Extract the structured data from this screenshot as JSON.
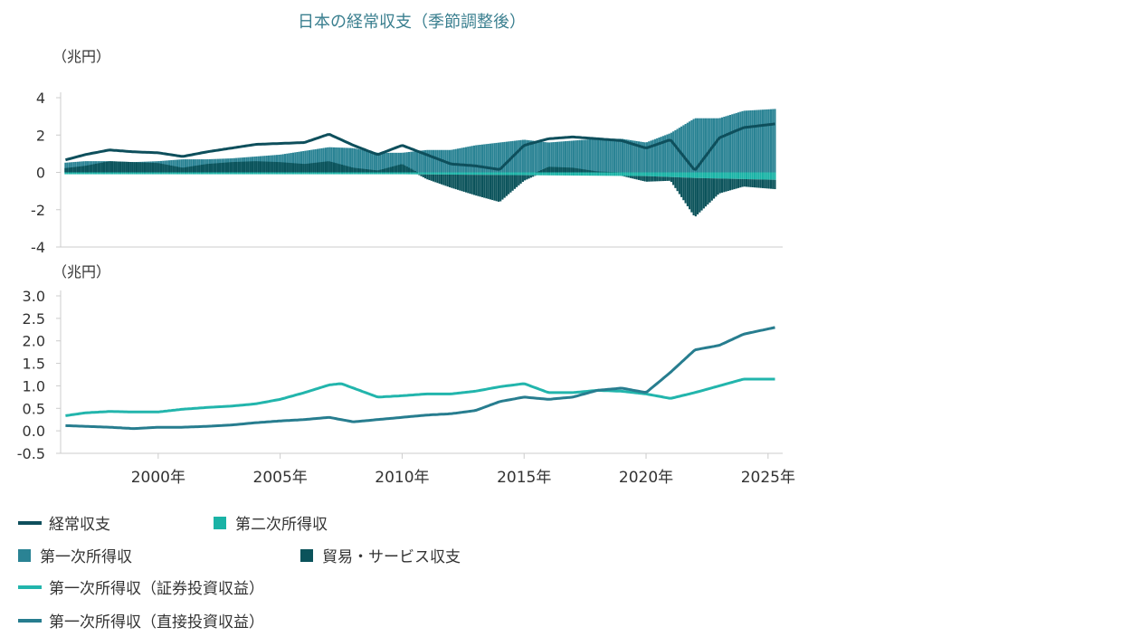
{
  "title": "日本の経常収支（季節調整後）",
  "colors": {
    "current_account": "#0e4f5c",
    "secondary_income": "#1ab3a6",
    "primary_income": "#2a8394",
    "trade_services": "#0b535b",
    "portfolio_income": "#22b5ac",
    "direct_income": "#277d8f",
    "axis": "#cccccc",
    "title": "#3a7f8f",
    "text": "#333333"
  },
  "chart_data": [
    {
      "type": "bar",
      "unit_label": "（兆円）",
      "ylim": [
        -4,
        4
      ],
      "yticks": [
        4,
        2,
        0,
        -2,
        -4
      ],
      "ytick_labels": [
        "4",
        "2",
        "0",
        "-2",
        "-4"
      ],
      "xlim": [
        1996.0,
        2025.6
      ],
      "grid": false,
      "series": [
        {
          "name": "第一次所得収",
          "type": "bar",
          "x": [
            1996,
            1997,
            1998,
            1999,
            2000,
            2001,
            2002,
            2003,
            2004,
            2005,
            2006,
            2007,
            2008,
            2009,
            2010,
            2011,
            2012,
            2013,
            2014,
            2015,
            2016,
            2017,
            2018,
            2019,
            2020,
            2021,
            2022,
            2023,
            2024,
            2025.3
          ],
          "values": [
            0.5,
            0.6,
            0.6,
            0.55,
            0.6,
            0.7,
            0.7,
            0.75,
            0.85,
            0.95,
            1.15,
            1.35,
            1.3,
            1.05,
            1.05,
            1.2,
            1.2,
            1.45,
            1.6,
            1.75,
            1.6,
            1.7,
            1.8,
            1.8,
            1.6,
            2.1,
            2.9,
            2.9,
            3.3,
            3.4
          ]
        },
        {
          "name": "第二次所得収",
          "type": "bar",
          "x": [
            1996,
            2000,
            2005,
            2010,
            2015,
            2020,
            2022,
            2025.3
          ],
          "values": [
            -0.1,
            -0.1,
            -0.1,
            -0.1,
            -0.15,
            -0.2,
            -0.3,
            -0.4
          ]
        },
        {
          "name": "貿易・サービス収支",
          "type": "bar",
          "x": [
            1996,
            1997,
            1998,
            1999,
            2000,
            2001,
            2002,
            2003,
            2004,
            2005,
            2006,
            2007,
            2008,
            2009,
            2010,
            2011,
            2012,
            2013,
            2014,
            2015,
            2016,
            2017,
            2018,
            2019,
            2020,
            2021,
            2022,
            2023,
            2024,
            2025.3
          ],
          "values": [
            0.2,
            0.35,
            0.6,
            0.55,
            0.5,
            0.25,
            0.45,
            0.55,
            0.6,
            0.55,
            0.45,
            0.6,
            0.25,
            0.1,
            0.45,
            -0.25,
            -0.7,
            -1.1,
            -1.45,
            -0.3,
            0.3,
            0.25,
            0.05,
            0.0,
            -0.3,
            -0.2,
            -2.1,
            -0.8,
            -0.4,
            -0.5
          ]
        },
        {
          "name": "経常収支",
          "type": "line",
          "x": [
            1996,
            1997,
            1998,
            1999,
            2000,
            2001,
            2002,
            2003,
            2004,
            2005,
            2006,
            2007,
            2008,
            2009,
            2010,
            2011,
            2012,
            2013,
            2014,
            2015,
            2016,
            2017,
            2018,
            2019,
            2020,
            2021,
            2022,
            2023,
            2024,
            2025.3
          ],
          "values": [
            0.6,
            0.95,
            1.2,
            1.1,
            1.05,
            0.85,
            1.1,
            1.3,
            1.5,
            1.55,
            1.6,
            2.05,
            1.45,
            0.95,
            1.45,
            0.95,
            0.45,
            0.35,
            0.15,
            1.45,
            1.8,
            1.9,
            1.8,
            1.7,
            1.3,
            1.75,
            0.1,
            1.85,
            2.4,
            2.6
          ]
        }
      ]
    },
    {
      "type": "line",
      "unit_label": "（兆円）",
      "ylim": [
        -0.5,
        3.0
      ],
      "yticks": [
        3.0,
        2.5,
        2.0,
        1.5,
        1.0,
        0.5,
        0.0,
        -0.5
      ],
      "ytick_labels": [
        "3.0",
        "2.5",
        "2.0",
        "1.5",
        "1.0",
        "0.5",
        "0.0",
        "-0.5"
      ],
      "xlim": [
        1996.0,
        2025.6
      ],
      "xticks": [
        2000,
        2005,
        2010,
        2015,
        2020,
        2025
      ],
      "xtick_labels": [
        "2000年",
        "2005年",
        "2010年",
        "2015年",
        "2020年",
        "2025年"
      ],
      "grid": false,
      "series": [
        {
          "name": "第一次所得収（証券投資収益）",
          "x": [
            1996,
            1997,
            1998,
            1999,
            2000,
            2001,
            2002,
            2003,
            2004,
            2005,
            2006,
            2007,
            2007.5,
            2008,
            2009,
            2010,
            2011,
            2012,
            2013,
            2014,
            2015,
            2016,
            2017,
            2018,
            2019,
            2020,
            2021,
            2022,
            2023,
            2024,
            2025.3
          ],
          "values": [
            0.32,
            0.4,
            0.43,
            0.42,
            0.42,
            0.48,
            0.52,
            0.55,
            0.6,
            0.7,
            0.85,
            1.02,
            1.05,
            0.95,
            0.75,
            0.78,
            0.82,
            0.82,
            0.88,
            0.98,
            1.05,
            0.85,
            0.85,
            0.9,
            0.88,
            0.82,
            0.72,
            0.85,
            1.0,
            1.15,
            1.15
          ]
        },
        {
          "name": "第一次所得収（直接投資収益）",
          "x": [
            1996,
            1997,
            1998,
            1999,
            2000,
            2001,
            2002,
            2003,
            2004,
            2005,
            2006,
            2007,
            2008,
            2009,
            2010,
            2011,
            2012,
            2013,
            2014,
            2015,
            2016,
            2017,
            2018,
            2019,
            2020,
            2021,
            2022,
            2023,
            2024,
            2025.3
          ],
          "values": [
            0.12,
            0.1,
            0.08,
            0.05,
            0.08,
            0.08,
            0.1,
            0.13,
            0.18,
            0.22,
            0.25,
            0.3,
            0.2,
            0.25,
            0.3,
            0.35,
            0.38,
            0.45,
            0.65,
            0.75,
            0.7,
            0.75,
            0.9,
            0.95,
            0.85,
            1.3,
            1.8,
            1.9,
            2.15,
            2.3
          ]
        }
      ]
    }
  ],
  "legend": [
    {
      "label": "経常収支",
      "kind": "line",
      "color": "#0e4f5c"
    },
    {
      "label": "第二次所得収",
      "kind": "square",
      "color": "#1ab3a6"
    },
    {
      "label": "第一次所得収",
      "kind": "square",
      "color": "#2a8394"
    },
    {
      "label": "貿易・サービス収支",
      "kind": "square",
      "color": "#0b535b"
    },
    {
      "label": "第一次所得収（証券投資収益）",
      "kind": "line",
      "color": "#22b5ac"
    },
    {
      "label": "第一次所得収（直接投資収益）",
      "kind": "line",
      "color": "#277d8f"
    }
  ]
}
